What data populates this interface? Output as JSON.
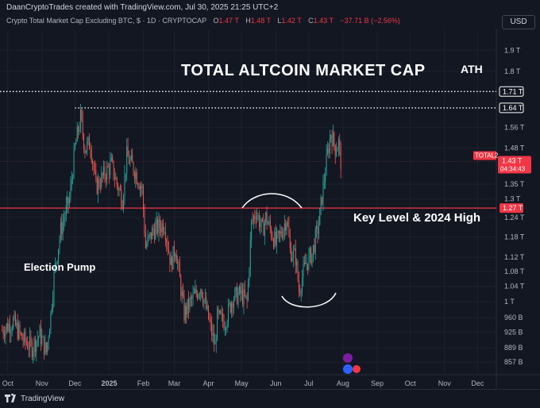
{
  "header": {
    "credit": "DaanCryptoTrades created with TradingView.com, Jul 30, 2025 21:25 UTC+2",
    "symbol": "Crypto Total Market Cap Excluding BTC, $ · 1D · CRYPTOCAP",
    "ohlc": {
      "o_label": "O",
      "o": "1.47 T",
      "h_label": "H",
      "h": "1.48 T",
      "l_label": "L",
      "l": "1.42 T",
      "c_label": "C",
      "c": "1.43 T",
      "change": "−37.71 B (−2.56%)"
    },
    "currency_button": "USD"
  },
  "annotations": {
    "title": "TOTAL ALTCOIN MARKET CAP",
    "ath": "ATH",
    "key_level": "Key Level & 2024 High",
    "election": "Election Pump"
  },
  "footer": {
    "brand": "TradingView"
  },
  "colors": {
    "background": "#131722",
    "up": "#26a69a",
    "down": "#ef5350",
    "key_level_line": "#f23645",
    "grid": "#1e222d",
    "axis_text": "#b2b5be",
    "marker_blue": "#2962ff",
    "marker_purple": "#7b1fa2"
  },
  "chart_data": {
    "type": "candlestick",
    "title": "Crypto Total Market Cap Excluding BTC, $ · 1D · CRYPTOCAP",
    "interval": "1D",
    "yscale": "log",
    "y_unit": "T USD",
    "ylim": [
      0.83,
      2.0
    ],
    "x_ticks": [
      "Oct",
      "Nov",
      "Dec",
      "2025",
      "Feb",
      "Mar",
      "Apr",
      "May",
      "Jun",
      "Jul",
      "Aug",
      "Sep",
      "Oct",
      "Nov",
      "Dec"
    ],
    "x_tick_dates": [
      "2024-10-01",
      "2024-11-01",
      "2024-12-01",
      "2025-01-01",
      "2025-02-01",
      "2025-03-01",
      "2025-04-01",
      "2025-05-01",
      "2025-06-01",
      "2025-07-01",
      "2025-08-01",
      "2025-09-01",
      "2025-10-01",
      "2025-11-01",
      "2025-12-01"
    ],
    "xlim": [
      "2024-09-24",
      "2025-12-18"
    ],
    "y_ticks": [
      {
        "value": 1.9,
        "label": "1.9 T"
      },
      {
        "value": 1.8,
        "label": "1.8 T"
      },
      {
        "value": 1.56,
        "label": "1.56 T"
      },
      {
        "value": 1.48,
        "label": "1.48 T"
      },
      {
        "value": 1.35,
        "label": "1.35 T"
      },
      {
        "value": 1.3,
        "label": "1.3 T"
      },
      {
        "value": 1.24,
        "label": "1.24 T"
      },
      {
        "value": 1.18,
        "label": "1.18 T"
      },
      {
        "value": 1.12,
        "label": "1.12 T"
      },
      {
        "value": 1.08,
        "label": "1.08 T"
      },
      {
        "value": 1.04,
        "label": "1.04 T"
      },
      {
        "value": 1.0,
        "label": "1 T"
      },
      {
        "value": 0.96,
        "label": "960 B"
      },
      {
        "value": 0.925,
        "label": "925 B"
      },
      {
        "value": 0.889,
        "label": "889 B"
      },
      {
        "value": 0.857,
        "label": "857 B"
      }
    ],
    "price_labels": [
      {
        "value": 1.71,
        "label": "1.71 T",
        "style": "white-outline"
      },
      {
        "value": 1.64,
        "label": "1.64 T",
        "style": "white-outline"
      },
      {
        "value": 1.43,
        "label": "1.43 T",
        "style": "red",
        "tag": "TOTAL2",
        "countdown": "04:34:43"
      },
      {
        "value": 1.27,
        "label": "1.27 T",
        "style": "red"
      }
    ],
    "horizontal_lines": [
      {
        "value": 1.71,
        "style": "dotted",
        "color": "#ffffff",
        "from": "2024-09-24"
      },
      {
        "value": 1.64,
        "style": "dotted",
        "color": "#ffffff",
        "from": "2024-12-01"
      },
      {
        "value": 1.27,
        "style": "solid",
        "color": "#f23645",
        "from": "2024-09-24"
      }
    ],
    "anchors": [
      {
        "date": "2024-09-26",
        "value": 0.93
      },
      {
        "date": "2024-10-06",
        "value": 0.95
      },
      {
        "date": "2024-10-14",
        "value": 0.91
      },
      {
        "date": "2024-10-23",
        "value": 0.89
      },
      {
        "date": "2024-10-30",
        "value": 0.92
      },
      {
        "date": "2024-11-05",
        "value": 0.88
      },
      {
        "date": "2024-11-09",
        "value": 0.97
      },
      {
        "date": "2024-11-12",
        "value": 1.07
      },
      {
        "date": "2024-11-18",
        "value": 1.2
      },
      {
        "date": "2024-11-26",
        "value": 1.3
      },
      {
        "date": "2024-12-01",
        "value": 1.48
      },
      {
        "date": "2024-12-06",
        "value": 1.6
      },
      {
        "date": "2024-12-10",
        "value": 1.48
      },
      {
        "date": "2024-12-15",
        "value": 1.5
      },
      {
        "date": "2024-12-20",
        "value": 1.34
      },
      {
        "date": "2024-12-27",
        "value": 1.38
      },
      {
        "date": "2025-01-03",
        "value": 1.42
      },
      {
        "date": "2025-01-08",
        "value": 1.35
      },
      {
        "date": "2025-01-13",
        "value": 1.3
      },
      {
        "date": "2025-01-17",
        "value": 1.45
      },
      {
        "date": "2025-01-24",
        "value": 1.4
      },
      {
        "date": "2025-01-31",
        "value": 1.33
      },
      {
        "date": "2025-02-03",
        "value": 1.15
      },
      {
        "date": "2025-02-10",
        "value": 1.2
      },
      {
        "date": "2025-02-20",
        "value": 1.22
      },
      {
        "date": "2025-02-26",
        "value": 1.1
      },
      {
        "date": "2025-03-02",
        "value": 1.15
      },
      {
        "date": "2025-03-10",
        "value": 0.97
      },
      {
        "date": "2025-03-16",
        "value": 1.0
      },
      {
        "date": "2025-03-25",
        "value": 1.04
      },
      {
        "date": "2025-03-31",
        "value": 0.97
      },
      {
        "date": "2025-04-07",
        "value": 0.89
      },
      {
        "date": "2025-04-09",
        "value": 0.96
      },
      {
        "date": "2025-04-16",
        "value": 0.95
      },
      {
        "date": "2025-04-23",
        "value": 1.01
      },
      {
        "date": "2025-04-30",
        "value": 1.02
      },
      {
        "date": "2025-05-06",
        "value": 1.0
      },
      {
        "date": "2025-05-10",
        "value": 1.22
      },
      {
        "date": "2025-05-14",
        "value": 1.26
      },
      {
        "date": "2025-05-20",
        "value": 1.2
      },
      {
        "date": "2025-05-23",
        "value": 1.24
      },
      {
        "date": "2025-06-01",
        "value": 1.16
      },
      {
        "date": "2025-06-07",
        "value": 1.2
      },
      {
        "date": "2025-06-11",
        "value": 1.24
      },
      {
        "date": "2025-06-14",
        "value": 1.14
      },
      {
        "date": "2025-06-19",
        "value": 1.12
      },
      {
        "date": "2025-06-22",
        "value": 1.03
      },
      {
        "date": "2025-06-28",
        "value": 1.1
      },
      {
        "date": "2025-07-04",
        "value": 1.13
      },
      {
        "date": "2025-07-10",
        "value": 1.22
      },
      {
        "date": "2025-07-14",
        "value": 1.34
      },
      {
        "date": "2025-07-18",
        "value": 1.46
      },
      {
        "date": "2025-07-21",
        "value": 1.54
      },
      {
        "date": "2025-07-25",
        "value": 1.48
      },
      {
        "date": "2025-07-28",
        "value": 1.5
      },
      {
        "date": "2025-07-30",
        "value": 1.43
      }
    ]
  }
}
